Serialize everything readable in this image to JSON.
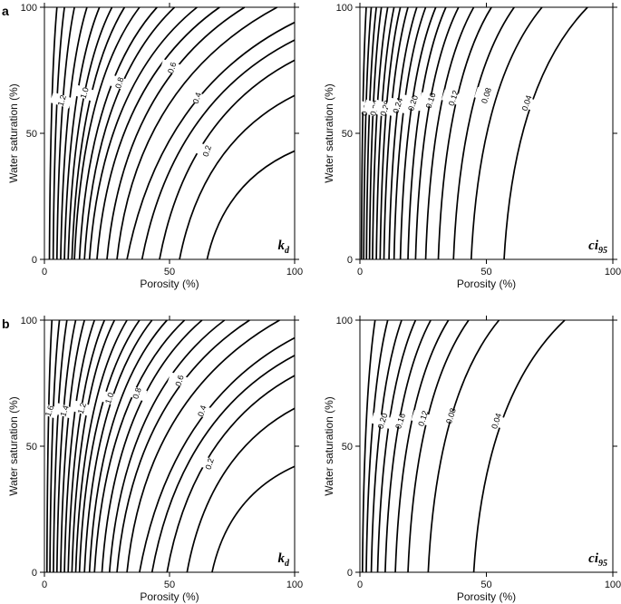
{
  "chart_data": [
    {
      "id": "a-left",
      "row": "a",
      "type": "contour",
      "colormap": "none (black contour lines)",
      "name_main": "k",
      "name_sub": "d",
      "xlabel": "Porosity (%)",
      "ylabel": "Water saturation (%)",
      "xlim": [
        0,
        100
      ],
      "ylim": [
        0,
        100
      ],
      "xticks": [
        "0",
        "50",
        "100"
      ],
      "yticks": [
        "0",
        "50",
        "100"
      ],
      "contour_labels": [
        {
          "text": "1.2",
          "x": 7,
          "y": 63
        },
        {
          "text": "1.0",
          "x": 16,
          "y": 66
        },
        {
          "text": "0.8",
          "x": 30,
          "y": 70
        },
        {
          "text": "0.6",
          "x": 51,
          "y": 76
        },
        {
          "text": "0.4",
          "x": 61,
          "y": 64
        },
        {
          "text": "0.2",
          "x": 65,
          "y": 43
        }
      ],
      "contours": [
        {
          "x0": 65,
          "xtop": 100,
          "y_at_right": 43
        },
        {
          "x0": 54,
          "xtop": 100,
          "y_at_right": 65
        },
        {
          "x0": 46,
          "xtop": 100,
          "y_at_right": 79
        },
        {
          "x0": 39,
          "xtop": 100,
          "y_at_right": 87
        },
        {
          "x0": 33,
          "xtop": 100,
          "y_at_right": 94
        },
        {
          "x0": 29,
          "xtop": 93
        },
        {
          "x0": 25,
          "xtop": 80
        },
        {
          "x0": 21,
          "xtop": 70
        },
        {
          "x0": 18,
          "xtop": 61
        },
        {
          "x0": 16,
          "xtop": 52
        },
        {
          "x0": 14,
          "xtop": 45
        },
        {
          "x0": 12,
          "xtop": 38
        },
        {
          "x0": 11,
          "xtop": 32
        },
        {
          "x0": 9.5,
          "xtop": 27
        },
        {
          "x0": 8,
          "xtop": 22
        },
        {
          "x0": 6.5,
          "xtop": 17
        },
        {
          "x0": 5,
          "xtop": 12
        },
        {
          "x0": 3.5,
          "xtop": 8
        },
        {
          "x0": 2,
          "xtop": 5
        }
      ]
    },
    {
      "id": "a-right",
      "row": "a",
      "type": "contour",
      "colormap": "none (black contour lines)",
      "name_main": "ci",
      "name_sub": "95",
      "xlabel": "Porosity (%)",
      "ylabel": "Water saturation (%)",
      "xlim": [
        0,
        100
      ],
      "ylim": [
        0,
        100
      ],
      "xticks": [
        "0",
        "50",
        "100"
      ],
      "yticks": [
        "0",
        "50",
        "100"
      ],
      "contour_labels": [
        {
          "text": "0.36",
          "x": 2.5,
          "y": 60
        },
        {
          "text": "0.32",
          "x": 6,
          "y": 60
        },
        {
          "text": "0.28",
          "x": 10,
          "y": 60
        },
        {
          "text": "0.24",
          "x": 15,
          "y": 61
        },
        {
          "text": "0.20",
          "x": 21,
          "y": 62
        },
        {
          "text": "0.16",
          "x": 28,
          "y": 63
        },
        {
          "text": "0.12",
          "x": 37,
          "y": 64
        },
        {
          "text": "0.08",
          "x": 50,
          "y": 65
        },
        {
          "text": "0.04",
          "x": 66,
          "y": 62
        }
      ],
      "contours": [
        {
          "x0": 57,
          "xtop": 90
        },
        {
          "x0": 44,
          "xtop": 72
        },
        {
          "x0": 37,
          "xtop": 61
        },
        {
          "x0": 31,
          "xtop": 52
        },
        {
          "x0": 26,
          "xtop": 45
        },
        {
          "x0": 22,
          "xtop": 39
        },
        {
          "x0": 19,
          "xtop": 34
        },
        {
          "x0": 16,
          "xtop": 30
        },
        {
          "x0": 13.5,
          "xtop": 26
        },
        {
          "x0": 11.5,
          "xtop": 22.5
        },
        {
          "x0": 9.5,
          "xtop": 19
        },
        {
          "x0": 8,
          "xtop": 16
        },
        {
          "x0": 6.5,
          "xtop": 13.5
        },
        {
          "x0": 5,
          "xtop": 11
        },
        {
          "x0": 3.8,
          "xtop": 8.5
        },
        {
          "x0": 2.6,
          "xtop": 6.5
        },
        {
          "x0": 1.5,
          "xtop": 4.5
        },
        {
          "x0": 0.6,
          "xtop": 2.5
        }
      ]
    },
    {
      "id": "b-left",
      "row": "b",
      "type": "contour",
      "colormap": "none (black contour lines)",
      "name_main": "k",
      "name_sub": "d",
      "xlabel": "Porosity (%)",
      "ylabel": "Water saturation (%)",
      "xlim": [
        0,
        100
      ],
      "ylim": [
        0,
        100
      ],
      "xticks": [
        "0",
        "50",
        "100"
      ],
      "yticks": [
        "0",
        "50",
        "100"
      ],
      "contour_labels": [
        {
          "text": "1.6",
          "x": 2,
          "y": 64
        },
        {
          "text": "1.4",
          "x": 8,
          "y": 64
        },
        {
          "text": "1.2",
          "x": 15,
          "y": 65
        },
        {
          "text": "1.0",
          "x": 26,
          "y": 69
        },
        {
          "text": "0.8",
          "x": 37,
          "y": 71
        },
        {
          "text": "0.6",
          "x": 54,
          "y": 76
        },
        {
          "text": "0.4",
          "x": 63,
          "y": 64
        },
        {
          "text": "0.2",
          "x": 66,
          "y": 43
        }
      ],
      "contours": [
        {
          "x0": 67,
          "xtop": 100,
          "y_at_right": 42
        },
        {
          "x0": 57,
          "xtop": 100,
          "y_at_right": 65
        },
        {
          "x0": 49,
          "xtop": 100,
          "y_at_right": 78
        },
        {
          "x0": 43,
          "xtop": 100,
          "y_at_right": 86
        },
        {
          "x0": 38,
          "xtop": 100,
          "y_at_right": 93
        },
        {
          "x0": 33,
          "xtop": 94
        },
        {
          "x0": 29,
          "xtop": 82
        },
        {
          "x0": 26,
          "xtop": 72
        },
        {
          "x0": 23,
          "xtop": 63
        },
        {
          "x0": 20,
          "xtop": 56
        },
        {
          "x0": 18,
          "xtop": 49
        },
        {
          "x0": 16,
          "xtop": 43
        },
        {
          "x0": 14,
          "xtop": 38
        },
        {
          "x0": 12.5,
          "xtop": 33
        },
        {
          "x0": 11,
          "xtop": 28
        },
        {
          "x0": 9.5,
          "xtop": 24
        },
        {
          "x0": 8,
          "xtop": 20
        },
        {
          "x0": 6.5,
          "xtop": 16
        },
        {
          "x0": 5,
          "xtop": 12.5
        },
        {
          "x0": 3.6,
          "xtop": 9
        },
        {
          "x0": 2.2,
          "xtop": 6
        },
        {
          "x0": 1,
          "xtop": 3
        }
      ]
    },
    {
      "id": "b-right",
      "row": "b",
      "type": "contour",
      "colormap": "none (black contour lines)",
      "name_main": "ci",
      "name_sub": "95",
      "xlabel": "Porosity (%)",
      "ylabel": "Water saturation (%)",
      "xlim": [
        0,
        100
      ],
      "ylim": [
        0,
        100
      ],
      "xticks": [
        "0",
        "50",
        "100"
      ],
      "yticks": [
        "0",
        "50",
        "100"
      ],
      "contour_labels": [
        {
          "text": "0.20",
          "x": 9,
          "y": 60
        },
        {
          "text": "0.16",
          "x": 16,
          "y": 60
        },
        {
          "text": "0.12",
          "x": 25,
          "y": 61
        },
        {
          "text": "0.08",
          "x": 36,
          "y": 62
        },
        {
          "text": "0.04",
          "x": 54,
          "y": 60
        }
      ],
      "contours": [
        {
          "x0": 45,
          "xtop": 81
        },
        {
          "x0": 27,
          "xtop": 55
        },
        {
          "x0": 19,
          "xtop": 43
        },
        {
          "x0": 14,
          "xtop": 35
        },
        {
          "x0": 10,
          "xtop": 28
        },
        {
          "x0": 7,
          "xtop": 22
        },
        {
          "x0": 4.5,
          "xtop": 16.5
        },
        {
          "x0": 2.5,
          "xtop": 11
        },
        {
          "x0": 1,
          "xtop": 6
        }
      ]
    }
  ],
  "panel_labels": {
    "a": "a",
    "b": "b"
  }
}
